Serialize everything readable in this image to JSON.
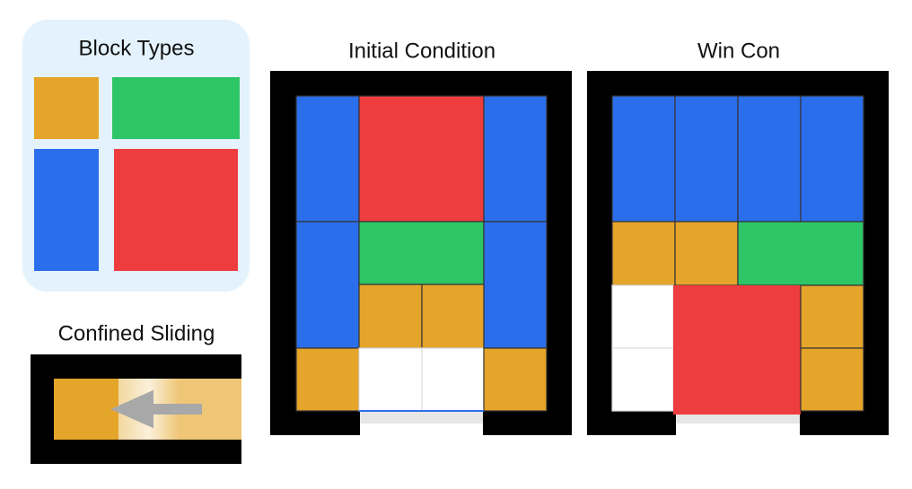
{
  "block_types": {
    "title": "Block Types"
  },
  "confined_sliding": {
    "title": "Confined Sliding"
  },
  "initial_condition": {
    "title": "Initial Condition"
  },
  "win_condition": {
    "title": "Win Con"
  }
}
